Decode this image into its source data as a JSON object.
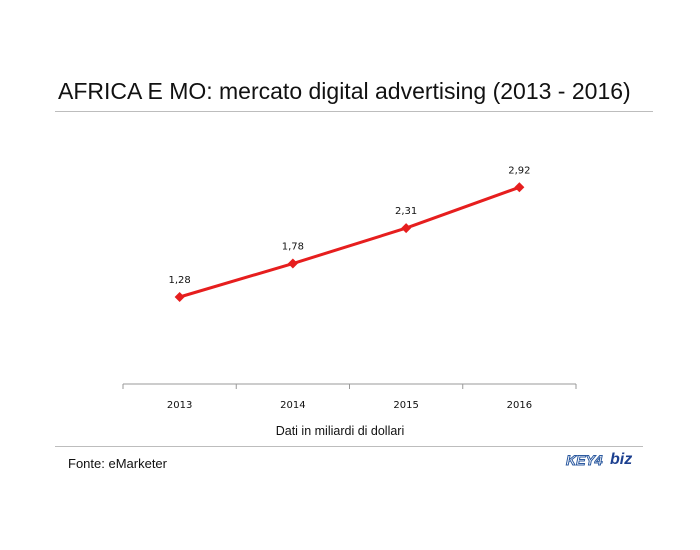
{
  "title": "AFRICA E MO: mercato digital advertising (2013 - 2016)",
  "source": "Fonte: eMarketer",
  "logo": {
    "part1": "KEY4",
    "part2": "biz"
  },
  "colors": {
    "series": "#e61e1e",
    "axis": "#999999",
    "rule": "#bdbdbd"
  },
  "chart_data": {
    "type": "line",
    "title": "AFRICA E MO: mercato digital advertising (2013 - 2016)",
    "xlabel": "Dati in miliardi di dollari",
    "ylabel": "",
    "categories": [
      "2013",
      "2014",
      "2015",
      "2016"
    ],
    "series": [
      {
        "values": [
          1.28,
          1.78,
          2.31,
          2.92
        ],
        "labels": [
          "1,28",
          "1,78",
          "2,31",
          "2,92"
        ]
      }
    ],
    "marker": "diamond",
    "data_labels": true,
    "grid": false,
    "legend": "none",
    "yaxis_visible": false
  }
}
